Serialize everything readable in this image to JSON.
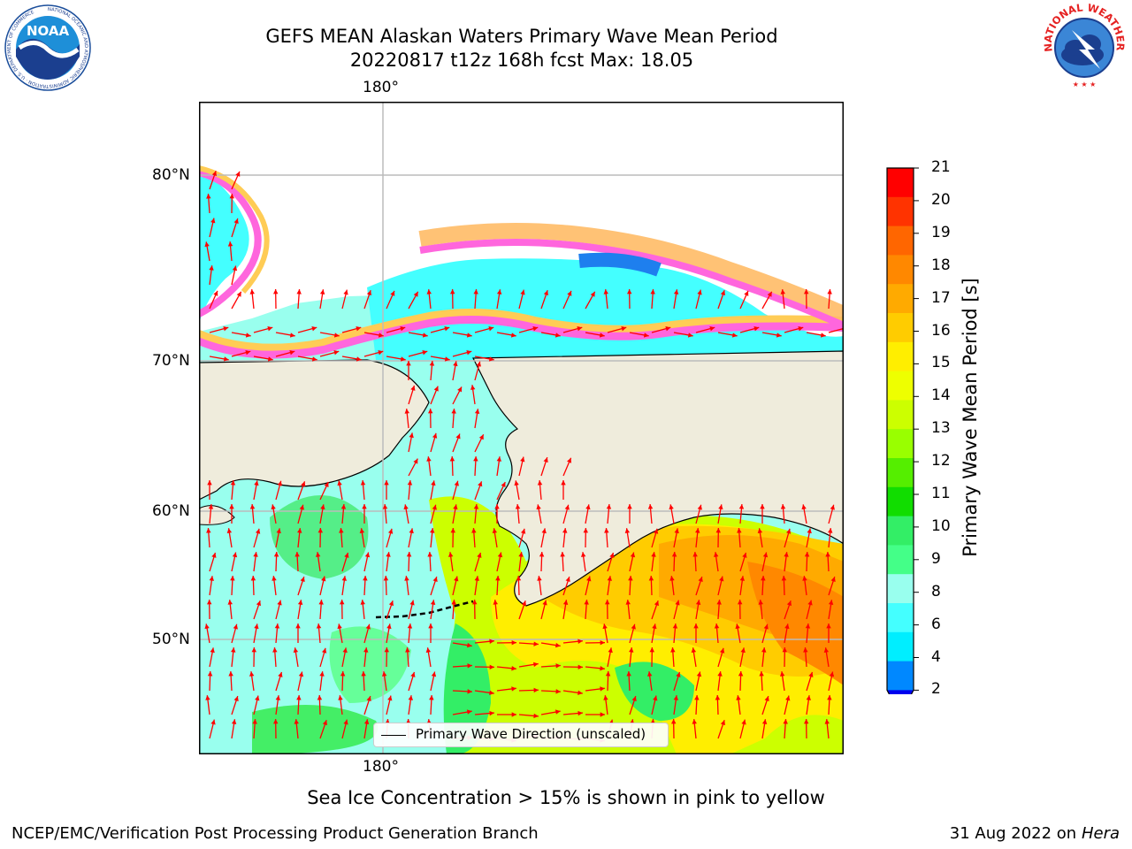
{
  "title_line1": "GEFS MEAN Alaskan Waters Primary Wave Mean Period",
  "title_line2": "20220817 t12z 168h fcst   Max: 18.05",
  "logos": {
    "left": {
      "name": "NOAA",
      "text": "NOAA",
      "ring_text": "NATIONAL OCEANIC AND ATMOSPHERIC ADMINISTRATION · U.S. DEPARTMENT OF COMMERCE"
    },
    "right": {
      "name": "National Weather Service",
      "ring_text": "NATIONAL WEATHER SERVICE"
    }
  },
  "map": {
    "lon_labels": {
      "top": "180°",
      "bottom": "180°"
    },
    "lat_labels": [
      "80°N",
      "70°N",
      "60°N",
      "50°N"
    ],
    "legend_label": "Primary Wave Direction (unscaled)",
    "colors": {
      "land": "#efecdc",
      "grid": "#bbbbbb",
      "arrow": "#ff0000"
    }
  },
  "colorbar": {
    "label": "Primary Wave Mean Period [s]",
    "ticks": [
      "21",
      "20",
      "19",
      "18",
      "17",
      "16",
      "15",
      "14",
      "13",
      "12",
      "11",
      "10",
      "9",
      "8",
      "6",
      "4",
      "2"
    ],
    "colors": [
      "#ff0000",
      "#ff3300",
      "#ff6600",
      "#ff8800",
      "#ffaa00",
      "#ffcc00",
      "#ffee00",
      "#eeff00",
      "#ccff00",
      "#99ff00",
      "#55ee00",
      "#11dd00",
      "#33ee66",
      "#44ff88",
      "#99ffee",
      "#44ffff",
      "#00eeff",
      "#0088ff"
    ],
    "extend_color": "#0000ee"
  },
  "caption": "Sea Ice Concentration > 15% is shown in pink to yellow",
  "footer_left": "NCEP/EMC/Verification Post Processing Product Generation Branch",
  "footer_right_date": "31 Aug 2022 on",
  "footer_right_machine": "Hera"
}
